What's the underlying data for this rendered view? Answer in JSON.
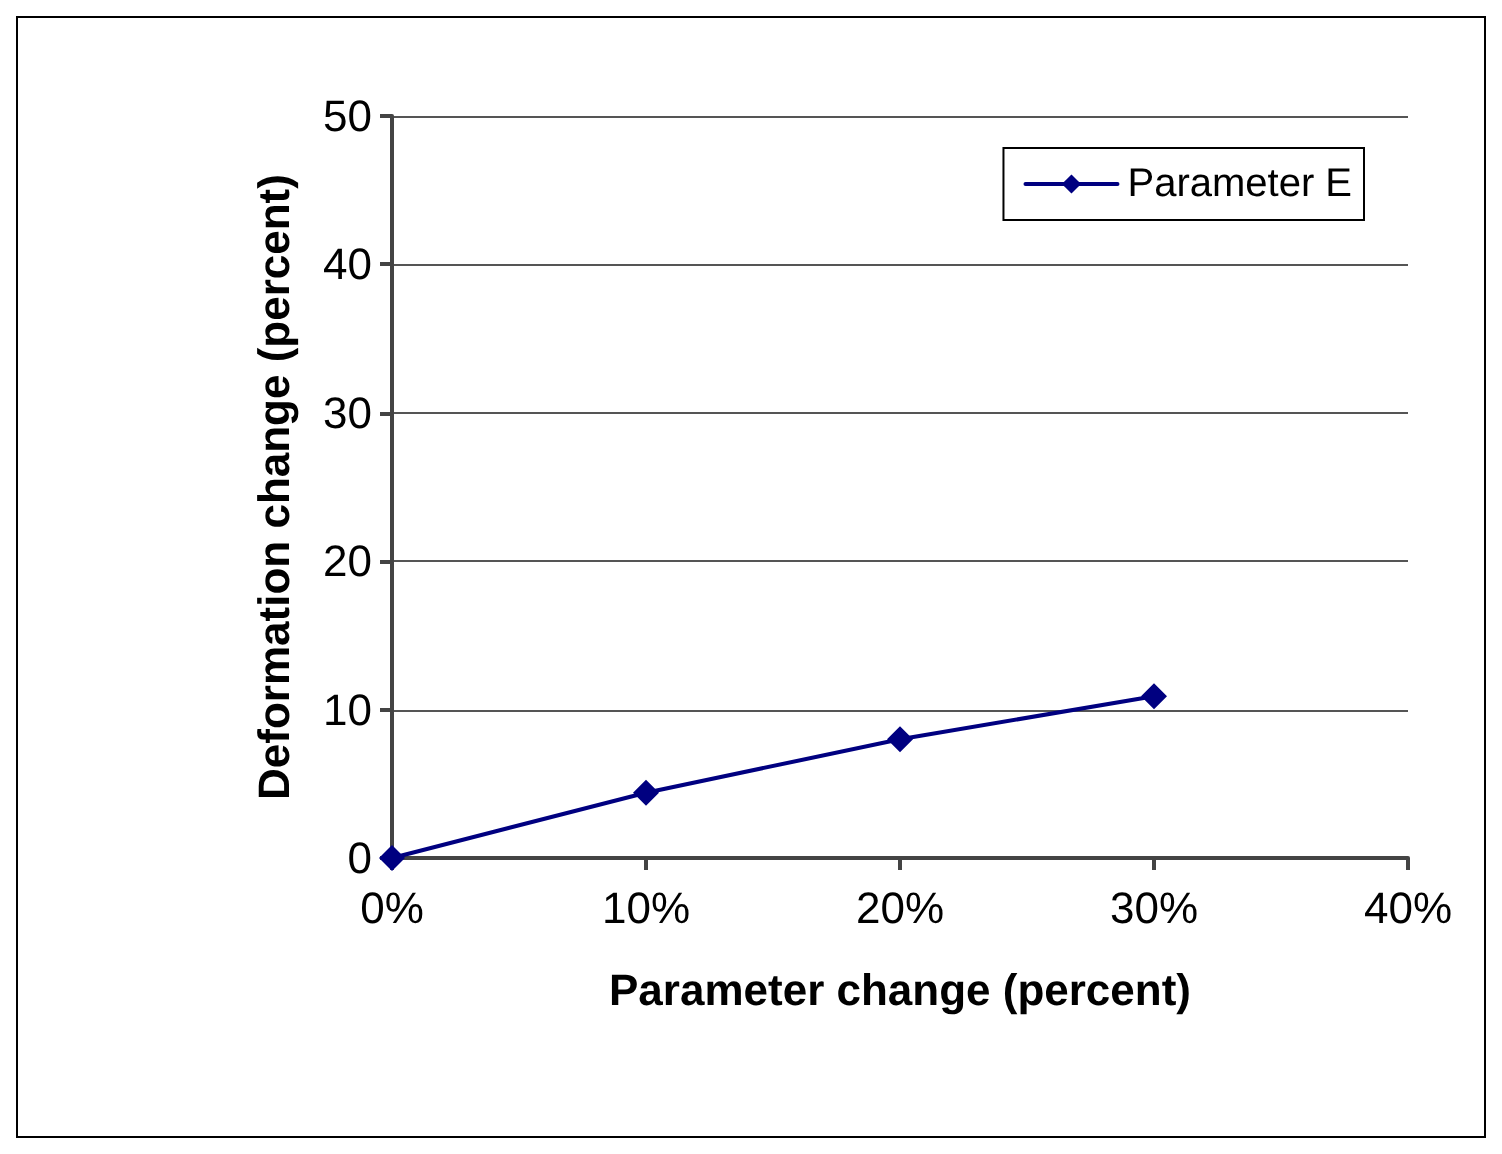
{
  "chart_data": {
    "type": "line",
    "xlabel": "Parameter change (percent)",
    "ylabel": "Deformation change (percent)",
    "x": [
      0,
      10,
      20,
      30
    ],
    "series": [
      {
        "name": "Parameter E",
        "color": "#000080",
        "values": [
          0,
          4.4,
          8.0,
          10.9
        ]
      }
    ],
    "xlim": [
      0,
      40
    ],
    "xticks": [
      {
        "value": 0,
        "label": "0%"
      },
      {
        "value": 10,
        "label": "10%"
      },
      {
        "value": 20,
        "label": "20%"
      },
      {
        "value": 30,
        "label": "30%"
      },
      {
        "value": 40,
        "label": "40%"
      }
    ],
    "ylim": [
      0,
      50
    ],
    "yticks": [
      0,
      10,
      20,
      30,
      40,
      50
    ],
    "grid": "y",
    "legend": "top right",
    "marker": "diamond",
    "line_style": "solid"
  }
}
